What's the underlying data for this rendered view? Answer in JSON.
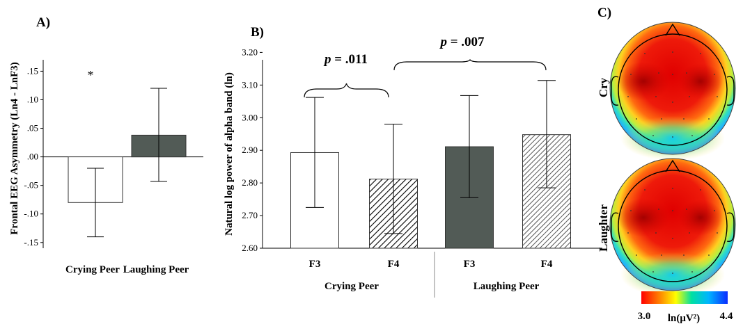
{
  "chart_data": [
    {
      "panel": "A)",
      "type": "bar",
      "ylabel": "Frontal EEG Asymmetry (Ln4 - LnF3)",
      "ylim": [
        -0.16,
        0.17
      ],
      "yticks": [
        -0.15,
        -0.1,
        -0.05,
        0.0,
        0.05,
        0.1,
        0.15
      ],
      "ytick_labels": [
        "-.15",
        "-.10",
        "-.05",
        ".00",
        ".05",
        ".10",
        ".15"
      ],
      "categories": [
        "Crying Peer",
        "Laughing Peer"
      ],
      "values": [
        -0.08,
        0.038
      ],
      "error_low": [
        -0.14,
        -0.043
      ],
      "error_high": [
        -0.02,
        0.12
      ],
      "fills": [
        "#ffffff",
        "#525b56"
      ],
      "annotations": [
        {
          "category": "Crying Peer",
          "text": "*"
        }
      ]
    },
    {
      "panel": "B)",
      "type": "bar",
      "ylabel": "Natural log power of alpha band (ln)",
      "ylim": [
        2.6,
        3.22
      ],
      "yticks": [
        2.6,
        2.7,
        2.8,
        2.9,
        3.0,
        3.1,
        3.2
      ],
      "ytick_labels": [
        "2.60",
        "2.70",
        "2.80",
        "2.90",
        "3.00",
        "3.10",
        "3.20"
      ],
      "bars": [
        {
          "label": "F3",
          "group": "Crying Peer",
          "value": 2.893,
          "err_low": 2.725,
          "err_high": 3.062,
          "fill": "white"
        },
        {
          "label": "F4",
          "group": "Crying Peer",
          "value": 2.812,
          "err_low": 2.645,
          "err_high": 2.98,
          "fill": "hatch"
        },
        {
          "label": "F3",
          "group": "Laughing Peer",
          "value": 2.911,
          "err_low": 2.755,
          "err_high": 3.068,
          "fill": "dark"
        },
        {
          "label": "F4",
          "group": "Laughing Peer",
          "value": 2.948,
          "err_low": 2.785,
          "err_high": 3.114,
          "fill": "hatch-light"
        }
      ],
      "groups": [
        "Crying Peer",
        "Laughing Peer"
      ],
      "comparisons": [
        {
          "p_label": "p",
          "p_value": " = .011",
          "between": [
            0,
            1
          ]
        },
        {
          "p_label": "p",
          "p_value": " = .007",
          "between": [
            1,
            3
          ]
        }
      ]
    },
    {
      "panel": "C)",
      "type": "heatmap",
      "maps": [
        "Cry",
        "Laughter"
      ],
      "colorbar": {
        "min_label": "3.0",
        "max_label": "4.4",
        "unit": "ln(μV²)",
        "colors": [
          "#ff0000",
          "#ff8800",
          "#ffff00",
          "#00e0a0",
          "#00b4ff",
          "#0a2cff"
        ]
      }
    }
  ]
}
